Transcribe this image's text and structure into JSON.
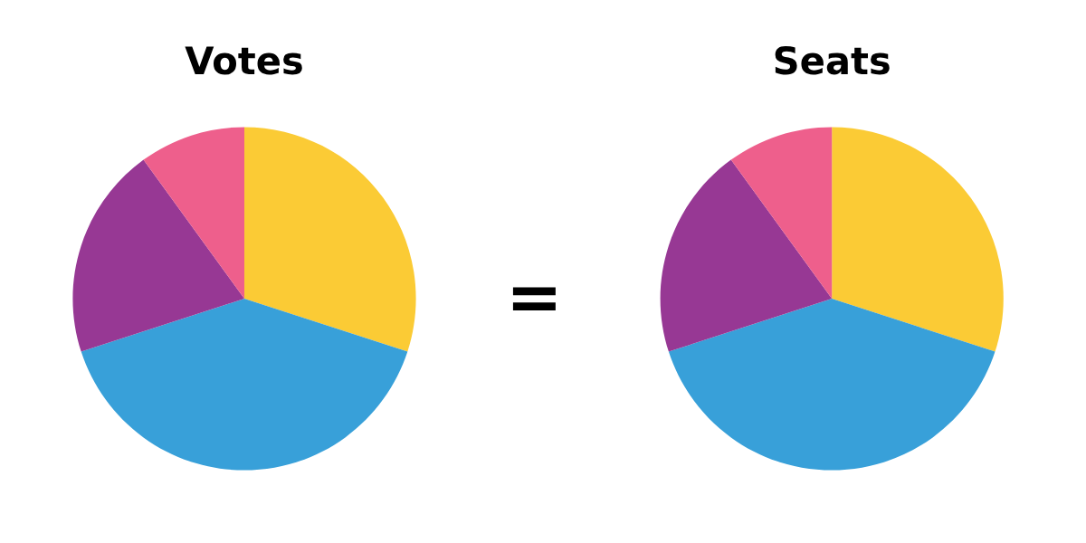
{
  "chart_data": [
    {
      "type": "pie",
      "title": "Votes",
      "categories": [
        null,
        null,
        null,
        null
      ],
      "values": [
        30,
        40,
        20,
        10
      ],
      "colors": [
        "#fbcb35",
        "#38a0d9",
        "#973894",
        "#ee5f8c"
      ],
      "annotations": [
        "="
      ]
    },
    {
      "type": "pie",
      "title": "Seats",
      "categories": [
        null,
        null,
        null,
        null
      ],
      "values": [
        30,
        40,
        20,
        10
      ],
      "colors": [
        "#fbcb35",
        "#38a0d9",
        "#973894",
        "#ee5f8c"
      ]
    }
  ]
}
